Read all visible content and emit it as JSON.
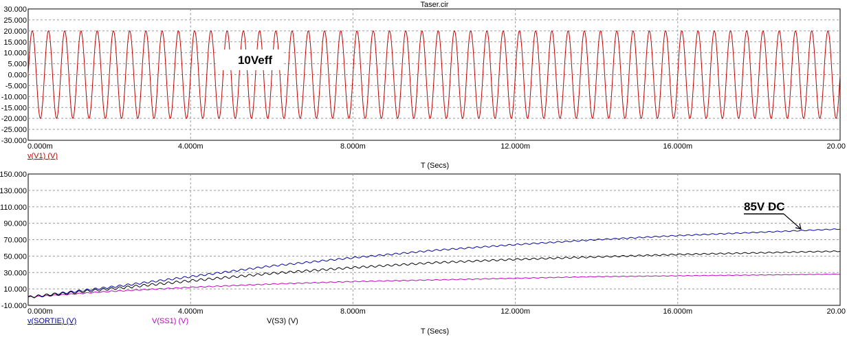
{
  "window_title": "Taser.cir",
  "chart_data": [
    {
      "type": "line",
      "xlabel": "T (Secs)",
      "ylabel": "",
      "xlim": [
        0,
        0.02
      ],
      "ylim": [
        -30,
        30
      ],
      "x_ticks": [
        "0.000m",
        "4.000m",
        "8.000m",
        "12.000m",
        "16.000m",
        "20.00"
      ],
      "y_ticks": [
        "30.000",
        "25.000",
        "20.000",
        "15.000",
        "10.000",
        "5.000",
        "0.000",
        "-5.000",
        "-10.000",
        "-15.000",
        "-20.000",
        "-25.000",
        "-30.000"
      ],
      "series": [
        {
          "name": "v(V1) (V)",
          "color": "#c00000",
          "amplitude": 20,
          "frequency_hz": 2500,
          "cycles": 50
        }
      ],
      "annotations": [
        {
          "text": "10Veff"
        }
      ],
      "grid": true
    },
    {
      "type": "line",
      "xlabel": "T (Secs)",
      "ylabel": "",
      "xlim": [
        0,
        0.02
      ],
      "ylim": [
        -10,
        150
      ],
      "x_ticks": [
        "0.000m",
        "4.000m",
        "8.000m",
        "12.000m",
        "16.000m",
        "20.00"
      ],
      "y_ticks": [
        "150.000",
        "130.000",
        "110.000",
        "90.000",
        "70.000",
        "50.000",
        "30.000",
        "10.000",
        "-10.000"
      ],
      "series": [
        {
          "name": "v(SORTIE) (V)",
          "color": "#0000a0",
          "x": [
            0,
            0.002,
            0.004,
            0.006,
            0.008,
            0.01,
            0.012,
            0.014,
            0.016,
            0.018,
            0.02
          ],
          "y": [
            0,
            12,
            25,
            38,
            48,
            57,
            64,
            70,
            75,
            79,
            83
          ]
        },
        {
          "name": "V(SS1) (V)",
          "color": "#c000c0",
          "x": [
            0,
            0.002,
            0.004,
            0.006,
            0.008,
            0.01,
            0.012,
            0.014,
            0.016,
            0.018,
            0.02
          ],
          "y": [
            0,
            7,
            12,
            16,
            19,
            21,
            23,
            25,
            26,
            27,
            28
          ]
        },
        {
          "name": "V(S3) (V)",
          "color": "#000000",
          "x": [
            0,
            0.002,
            0.004,
            0.006,
            0.008,
            0.01,
            0.012,
            0.014,
            0.016,
            0.018,
            0.02
          ],
          "y": [
            0,
            10,
            20,
            29,
            36,
            42,
            46,
            49,
            52,
            54,
            56
          ]
        }
      ],
      "annotations": [
        {
          "text": "85V DC"
        }
      ],
      "grid": true
    }
  ]
}
